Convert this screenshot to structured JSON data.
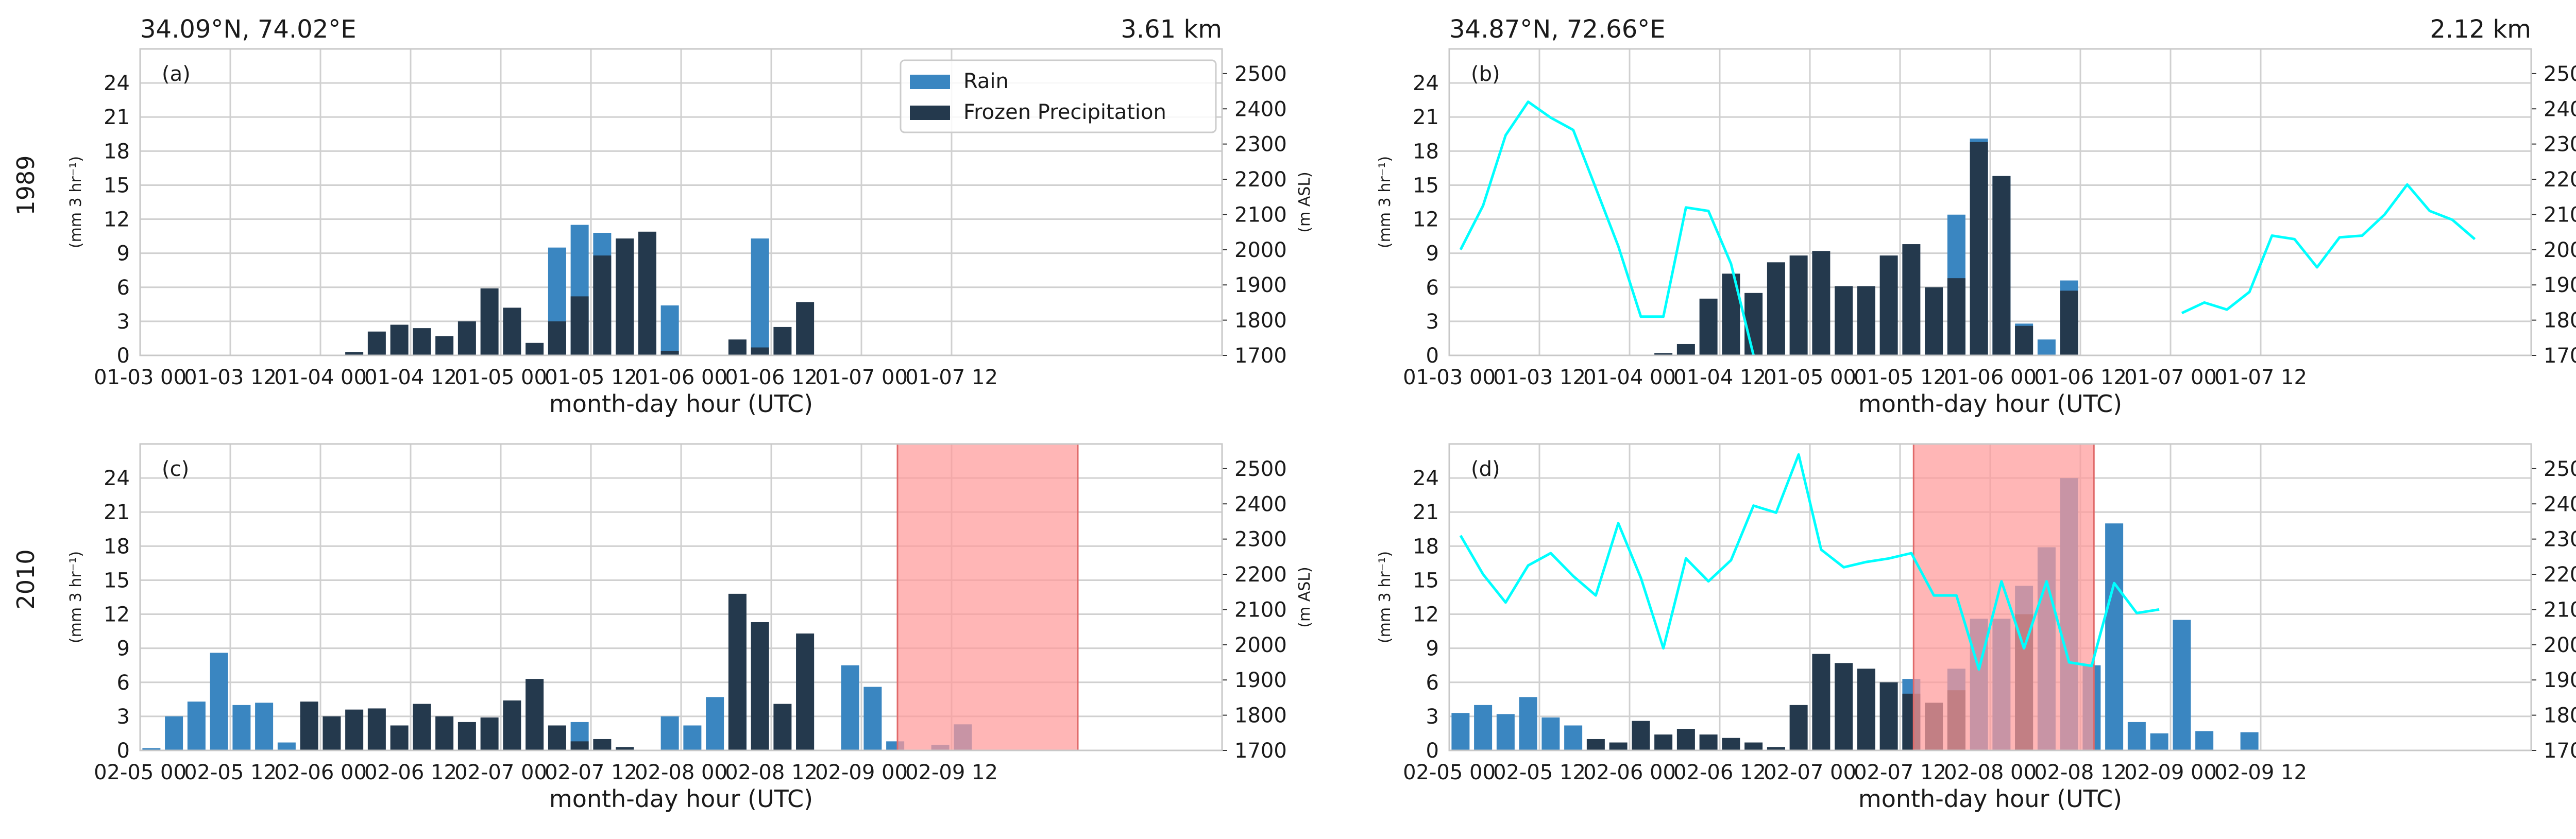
{
  "figure": {
    "row_labels": [
      "1989",
      "2010"
    ],
    "legend": {
      "rain_label": "Rain",
      "frozen_label": "Frozen Precipitation"
    },
    "colors": {
      "rain": "#3a86c1",
      "frozen": "#24394d",
      "elevation_line": "#00ffff",
      "highlight": "#ff9a9a"
    }
  },
  "chart_data": [
    {
      "type": "bar",
      "panel": "(a)",
      "header_left": "34.09°N, 74.02°E",
      "header_right": "3.61 km",
      "xlabel": "month-day hour (UTC)",
      "ylabel": "(mm 3 hr⁻¹)",
      "y2label": "(m ASL)",
      "ylim": [
        0,
        27
      ],
      "y2lim": [
        1700,
        2570
      ],
      "y_ticks": [
        "0",
        "3",
        "6",
        "9",
        "12",
        "15",
        "18",
        "21",
        "24"
      ],
      "y2_ticks": [
        "1700",
        "1800",
        "1900",
        "2000",
        "2100",
        "2200",
        "2300",
        "2400",
        "2500"
      ],
      "x_ticks": [
        "01-03 00",
        "01-03 12",
        "01-04 00",
        "01-04 12",
        "01-05 00",
        "01-05 12",
        "01-06 00",
        "01-06 12",
        "01-07 00",
        "01-07 12"
      ],
      "legend_placement": "top-right",
      "grid": true,
      "series": [
        {
          "name": "Rain",
          "values": [
            0,
            0,
            0,
            0,
            0,
            0,
            0,
            0,
            0,
            0,
            0,
            0,
            0,
            0,
            0,
            0,
            0,
            0,
            9.5,
            11.5,
            10.8,
            3,
            5.8,
            4.4,
            0,
            0,
            0,
            10.3,
            0,
            0,
            0,
            0,
            0,
            0,
            0,
            0,
            0,
            0,
            0,
            0,
            0,
            0,
            0,
            0,
            0,
            0,
            0,
            0
          ]
        },
        {
          "name": "Frozen Precipitation",
          "values": [
            0,
            0,
            0,
            0,
            0,
            0,
            0,
            0,
            0,
            0.3,
            2.1,
            2.7,
            2.4,
            1.7,
            3,
            5.9,
            4.2,
            1.1,
            3,
            5.2,
            8.8,
            10.3,
            10.9,
            0.4,
            0,
            0,
            1.4,
            0.7,
            2.5,
            4.7,
            0,
            0,
            0,
            0,
            0,
            0,
            0,
            0,
            0,
            0,
            0,
            0,
            0,
            0,
            0,
            0,
            0,
            0
          ]
        }
      ]
    },
    {
      "type": "bar",
      "panel": "(b)",
      "header_left": "34.87°N, 72.66°E",
      "header_right": "2.12 km",
      "xlabel": "month-day hour (UTC)",
      "ylabel": "(mm 3 hr⁻¹)",
      "y2label": "(m ASL)",
      "ylim": [
        0,
        27
      ],
      "y2lim": [
        1700,
        2570
      ],
      "y_ticks": [
        "0",
        "3",
        "6",
        "9",
        "12",
        "15",
        "18",
        "21",
        "24"
      ],
      "y2_ticks": [
        "1700",
        "1800",
        "1900",
        "2000",
        "2100",
        "2200",
        "2300",
        "2400",
        "2500"
      ],
      "x_ticks": [
        "01-03 00",
        "01-03 12",
        "01-04 00",
        "01-04 12",
        "01-05 00",
        "01-05 12",
        "01-06 00",
        "01-06 12",
        "01-07 00",
        "01-07 12"
      ],
      "grid": true,
      "series": [
        {
          "name": "Rain",
          "values": [
            0,
            0,
            0,
            0,
            0,
            0,
            0,
            0,
            0,
            0,
            0,
            0,
            0,
            0,
            0,
            0,
            0,
            0,
            0,
            0,
            0,
            0,
            12.4,
            19.1,
            15.8,
            2.8,
            1.4,
            6.6,
            0,
            0,
            0,
            0,
            0,
            0,
            0,
            0,
            0,
            0,
            0,
            0,
            0,
            0,
            0,
            0,
            0,
            0,
            0,
            0
          ]
        },
        {
          "name": "Frozen Precipitation",
          "values": [
            0,
            0,
            0,
            0,
            0,
            0,
            0,
            0,
            0,
            0.2,
            1,
            5,
            7.2,
            5.5,
            8.2,
            8.8,
            9.2,
            6.1,
            6.1,
            8.8,
            9.8,
            6,
            6.8,
            18.8,
            15.8,
            2.6,
            0,
            5.7,
            0,
            0,
            0,
            0,
            0,
            0,
            0,
            0,
            0,
            0,
            0,
            0,
            0,
            0,
            0,
            0,
            0,
            0,
            0,
            0
          ]
        }
      ],
      "elevation_line": [
        {
          "x": 0,
          "y": 2000
        },
        {
          "x": 1,
          "y": 2125
        },
        {
          "x": 2,
          "y": 2325
        },
        {
          "x": 3,
          "y": 2420
        },
        {
          "x": 4,
          "y": 2375
        },
        {
          "x": 5,
          "y": 2340
        },
        {
          "x": 6,
          "y": 2175
        },
        {
          "x": 7,
          "y": 2010
        },
        {
          "x": 8,
          "y": 1810
        },
        {
          "x": 9,
          "y": 1810
        },
        {
          "x": 10,
          "y": 2120
        },
        {
          "x": 11,
          "y": 2110
        },
        {
          "x": 12,
          "y": 1960
        },
        {
          "x": 13,
          "y": 1700
        },
        null,
        {
          "x": 32,
          "y": 1820
        },
        {
          "x": 33,
          "y": 1850
        },
        {
          "x": 34,
          "y": 1830
        },
        {
          "x": 35,
          "y": 1880
        },
        {
          "x": 36,
          "y": 2040
        },
        {
          "x": 37,
          "y": 2030
        },
        {
          "x": 38,
          "y": 1950
        },
        {
          "x": 39,
          "y": 2035
        },
        {
          "x": 40,
          "y": 2040
        },
        {
          "x": 41,
          "y": 2100
        },
        {
          "x": 42,
          "y": 2185
        },
        {
          "x": 43,
          "y": 2110
        },
        {
          "x": 44,
          "y": 2085
        },
        {
          "x": 45,
          "y": 2030
        }
      ]
    },
    {
      "type": "bar",
      "panel": "(c)",
      "xlabel": "month-day hour (UTC)",
      "ylabel": "(mm 3 hr⁻¹)",
      "y2label": "(m ASL)",
      "ylim": [
        0,
        27
      ],
      "y2lim": [
        1700,
        2570
      ],
      "y_ticks": [
        "0",
        "3",
        "6",
        "9",
        "12",
        "15",
        "18",
        "21",
        "24"
      ],
      "y2_ticks": [
        "1700",
        "1800",
        "1900",
        "2000",
        "2100",
        "2200",
        "2300",
        "2400",
        "2500"
      ],
      "x_ticks": [
        "02-05 00",
        "02-05 12",
        "02-06 00",
        "02-06 12",
        "02-07 00",
        "02-07 12",
        "02-08 00",
        "02-08 12",
        "02-09 00",
        "02-09 12"
      ],
      "highlight_span": [
        33.6,
        41.6
      ],
      "grid": true,
      "series": [
        {
          "name": "Rain",
          "values": [
            0.2,
            3,
            4.3,
            8.6,
            4,
            4.2,
            0.7,
            0,
            0,
            0,
            0,
            0,
            0,
            0,
            0,
            0,
            0,
            0,
            0,
            2.5,
            0,
            0,
            0,
            3,
            2.2,
            4.7,
            5.3,
            0,
            0,
            9,
            0,
            7.5,
            5.6,
            0.8,
            0,
            0.5,
            2.3,
            0,
            0,
            0,
            0,
            0,
            0,
            0,
            0,
            0,
            0,
            0
          ]
        },
        {
          "name": "Frozen Precipitation",
          "values": [
            0,
            0,
            0,
            0,
            0,
            0,
            0,
            4.3,
            3,
            3.6,
            3.7,
            2.2,
            4.1,
            3,
            2.5,
            2.9,
            4.4,
            6.3,
            2.2,
            0.8,
            1,
            0.3,
            0,
            0,
            0,
            0,
            13.8,
            11.3,
            4.1,
            10.3,
            0,
            0,
            0,
            0,
            0,
            0,
            0,
            0,
            0,
            0,
            0,
            0,
            0,
            0,
            0,
            0,
            0,
            0
          ]
        }
      ]
    },
    {
      "type": "bar",
      "panel": "(d)",
      "xlabel": "month-day hour (UTC)",
      "ylabel": "(mm 3 hr⁻¹)",
      "y2label": "(m ASL)",
      "ylim": [
        0,
        27
      ],
      "y2lim": [
        1700,
        2570
      ],
      "y_ticks": [
        "0",
        "3",
        "6",
        "9",
        "12",
        "15",
        "18",
        "21",
        "24"
      ],
      "y2_ticks": [
        "1700",
        "1800",
        "1900",
        "2000",
        "2100",
        "2200",
        "2300",
        "2400",
        "2500"
      ],
      "x_ticks": [
        "02-05 00",
        "02-05 12",
        "02-06 00",
        "02-06 12",
        "02-07 00",
        "02-07 12",
        "02-08 00",
        "02-08 12",
        "02-09 00",
        "02-09 12"
      ],
      "highlight_span": [
        20.6,
        28.6
      ],
      "grid": true,
      "series": [
        {
          "name": "Rain",
          "values": [
            3.3,
            4,
            3.2,
            4.7,
            2.9,
            2.2,
            0,
            0,
            0,
            0,
            0,
            0,
            0,
            0,
            0,
            0,
            0,
            0,
            0,
            0,
            6.3,
            0,
            7.2,
            11.6,
            11.6,
            14.5,
            17.9,
            24,
            7.5,
            20,
            2.5,
            1.5,
            11.5,
            1.7,
            0,
            1.6,
            0,
            0,
            0,
            0,
            0,
            0,
            0,
            0,
            0,
            0,
            0,
            0
          ]
        },
        {
          "name": "Frozen Precipitation",
          "values": [
            0,
            0,
            0,
            0,
            0,
            0,
            1,
            0.7,
            2.6,
            1.4,
            1.9,
            1.4,
            1.1,
            0.7,
            0.3,
            4,
            8.5,
            7.7,
            7.2,
            6,
            5,
            4.2,
            5.3,
            0,
            0,
            12,
            0,
            0,
            0,
            0,
            0,
            0,
            0,
            0,
            0,
            0,
            0,
            0,
            0,
            0,
            0,
            0,
            0,
            0,
            0,
            0,
            0,
            0
          ]
        }
      ],
      "elevation_line": [
        {
          "x": 0,
          "y": 2310
        },
        {
          "x": 1,
          "y": 2200
        },
        {
          "x": 2,
          "y": 2120
        },
        {
          "x": 3,
          "y": 2225
        },
        {
          "x": 4,
          "y": 2260
        },
        {
          "x": 5,
          "y": 2195
        },
        {
          "x": 6,
          "y": 2140
        },
        {
          "x": 7,
          "y": 2345
        },
        {
          "x": 8,
          "y": 2190
        },
        {
          "x": 9,
          "y": 1990
        },
        {
          "x": 10,
          "y": 2245
        },
        {
          "x": 11,
          "y": 2180
        },
        {
          "x": 12,
          "y": 2240
        },
        {
          "x": 13,
          "y": 2395
        },
        {
          "x": 14,
          "y": 2375
        },
        {
          "x": 15,
          "y": 2540
        },
        {
          "x": 16,
          "y": 2270
        },
        {
          "x": 17,
          "y": 2220
        },
        {
          "x": 18,
          "y": 2235
        },
        {
          "x": 19,
          "y": 2245
        },
        {
          "x": 20,
          "y": 2260
        },
        {
          "x": 21,
          "y": 2140
        },
        {
          "x": 22,
          "y": 2140
        },
        {
          "x": 23,
          "y": 1930
        },
        {
          "x": 24,
          "y": 2180
        },
        {
          "x": 25,
          "y": 1990
        },
        {
          "x": 26,
          "y": 2180
        },
        {
          "x": 27,
          "y": 1950
        },
        {
          "x": 28,
          "y": 1940
        },
        {
          "x": 29,
          "y": 2175
        },
        {
          "x": 30,
          "y": 2090
        },
        {
          "x": 31,
          "y": 2100
        }
      ]
    }
  ]
}
